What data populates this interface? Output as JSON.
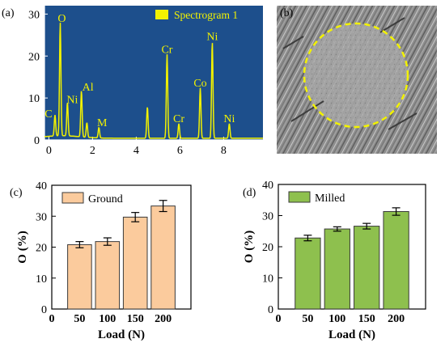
{
  "panels": {
    "a": {
      "letter": "(a)",
      "legend": "Spectrogram 1",
      "colors": {
        "background": "#1d4f8c",
        "spectrum": "#f2f200",
        "text": "#f2f200",
        "axis": "#ffffff"
      },
      "chart_data": {
        "type": "line",
        "title": "",
        "xlabel": "",
        "ylabel": "",
        "xlim": [
          -0.2,
          9.8
        ],
        "ylim": [
          0,
          32
        ],
        "x_ticks": [
          0,
          2,
          4,
          6,
          8
        ],
        "y_ticks": [
          0,
          10,
          20,
          30
        ],
        "series": [
          {
            "name": "Spectrogram 1",
            "peaks": [
              {
                "x": 0.28,
                "height": 5.0,
                "label": "C"
              },
              {
                "x": 0.52,
                "height": 27.0,
                "label": "O"
              },
              {
                "x": 0.85,
                "height": 8.0,
                "label": "Ni"
              },
              {
                "x": 1.49,
                "height": 11.0,
                "label": "Al"
              },
              {
                "x": 1.74,
                "height": 3.5,
                "label": ""
              },
              {
                "x": 2.29,
                "height": 2.5,
                "label": "M"
              },
              {
                "x": 4.51,
                "height": 7.5,
                "label": ""
              },
              {
                "x": 5.41,
                "height": 20.0,
                "label": "Cr"
              },
              {
                "x": 5.95,
                "height": 3.5,
                "label": "Cr"
              },
              {
                "x": 6.93,
                "height": 12.0,
                "label": "Co"
              },
              {
                "x": 7.48,
                "height": 23.0,
                "label": "Ni"
              },
              {
                "x": 8.26,
                "height": 3.5,
                "label": "Ni"
              }
            ]
          }
        ]
      }
    },
    "b": {
      "letter": "(b)"
    },
    "c": {
      "letter": "(c)",
      "colors": {
        "bar": "#fbcb9d",
        "edge": "#3a3a3a"
      },
      "chart_data": {
        "type": "bar",
        "title": "",
        "xlabel": "Load (N)",
        "ylabel": "O (%)",
        "xlim": [
          0,
          250
        ],
        "ylim": [
          0,
          40
        ],
        "x_ticks": [
          0,
          50,
          100,
          150,
          200
        ],
        "y_ticks": [
          0,
          10,
          20,
          30,
          40
        ],
        "categories": [
          50,
          100,
          150,
          200
        ],
        "series": [
          {
            "name": "Ground",
            "values": [
              20.8,
              21.8,
              29.7,
              33.3
            ],
            "errors": [
              1.0,
              1.2,
              1.5,
              1.8
            ]
          }
        ]
      }
    },
    "d": {
      "letter": "(d)",
      "colors": {
        "bar": "#8ec04e",
        "edge": "#3a3a3a"
      },
      "chart_data": {
        "type": "bar",
        "title": "",
        "xlabel": "Load (N)",
        "ylabel": "O (%)",
        "xlim": [
          0,
          250
        ],
        "ylim": [
          0,
          40
        ],
        "x_ticks": [
          0,
          50,
          100,
          150,
          200
        ],
        "y_ticks": [
          0,
          10,
          20,
          30,
          40
        ],
        "categories": [
          50,
          100,
          150,
          200
        ],
        "series": [
          {
            "name": "Milled",
            "values": [
              22.8,
              25.7,
              26.6,
              31.3
            ],
            "errors": [
              0.9,
              0.7,
              0.9,
              1.2
            ]
          }
        ]
      }
    }
  }
}
